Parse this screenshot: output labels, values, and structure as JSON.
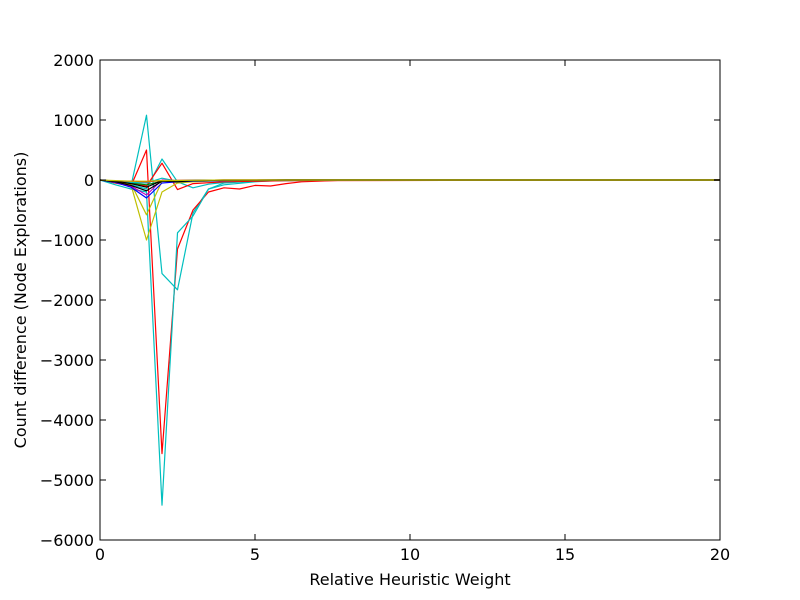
{
  "chart_data": {
    "type": "line",
    "title": "",
    "xlabel": "Relative Heuristic Weight",
    "ylabel": "Count difference (Node Explorations)",
    "xlim": [
      0,
      20
    ],
    "ylim": [
      -6000,
      2000
    ],
    "xticks": [
      0,
      5,
      10,
      15,
      20
    ],
    "yticks": [
      2000,
      1000,
      0,
      -1000,
      -2000,
      -3000,
      -4000,
      -5000,
      -6000
    ],
    "xtick_labels": [
      "0",
      "5",
      "10",
      "15",
      "20"
    ],
    "ytick_labels": [
      "2000",
      "1000",
      "0",
      "−1000",
      "−2000",
      "−3000",
      "−4000",
      "−5000",
      "−6000"
    ],
    "grid": false,
    "legend": "none",
    "series": [
      {
        "color": "#00bfbf",
        "x": [
          0,
          0.5,
          1.0,
          1.5,
          2.0,
          2.5,
          3.0,
          3.5,
          4.0,
          5.0,
          6.0,
          8.0,
          20.0
        ],
        "y": [
          0,
          -50,
          -100,
          1080,
          -1560,
          -1830,
          -550,
          -150,
          -50,
          -20,
          0,
          0,
          0
        ]
      },
      {
        "color": "#ff0000",
        "x": [
          0,
          0.5,
          1.0,
          1.5,
          2.0,
          2.5,
          3.0,
          3.5,
          4.0,
          4.5,
          5.0,
          5.5,
          6.0,
          6.5,
          8.0,
          20.0
        ],
        "y": [
          0,
          -50,
          -100,
          500,
          -4560,
          -1150,
          -500,
          -200,
          -130,
          -150,
          -90,
          -100,
          -60,
          -30,
          0,
          0
        ]
      },
      {
        "color": "#00bfbf",
        "x": [
          0,
          0.5,
          1.0,
          1.5,
          2.0,
          2.5,
          3.0,
          3.5,
          4.0,
          5.0,
          6.0,
          8.0,
          20.0
        ],
        "y": [
          0,
          -80,
          -150,
          -200,
          -5420,
          -880,
          -600,
          -150,
          -80,
          -30,
          0,
          0,
          0
        ]
      },
      {
        "color": "#00bfbf",
        "x": [
          0,
          0.5,
          1.0,
          1.5,
          2.0,
          2.5,
          3.0,
          3.5,
          4.0,
          5.0,
          8.0,
          20.0
        ],
        "y": [
          0,
          -40,
          -80,
          -150,
          350,
          -30,
          -130,
          -70,
          -40,
          -20,
          0,
          0
        ]
      },
      {
        "color": "#ff0000",
        "x": [
          0,
          0.5,
          1.0,
          1.5,
          2.0,
          2.5,
          3.0,
          4.0,
          6.0,
          20.0
        ],
        "y": [
          0,
          -30,
          -60,
          -100,
          280,
          -160,
          -60,
          -30,
          -10,
          0
        ]
      },
      {
        "color": "#bfbf00",
        "x": [
          0,
          0.5,
          1.0,
          1.5,
          2.0,
          2.5,
          3.0,
          4.0,
          6.0,
          20.0
        ],
        "y": [
          0,
          -30,
          -80,
          -1000,
          -200,
          -50,
          -30,
          -10,
          0,
          0
        ]
      },
      {
        "color": "#bfbf00",
        "x": [
          0,
          0.5,
          1.0,
          1.5,
          2.0,
          2.5,
          3.0,
          4.0,
          6.0,
          20.0
        ],
        "y": [
          0,
          -20,
          -60,
          -580,
          -20,
          -40,
          -20,
          -10,
          0,
          0
        ]
      },
      {
        "color": "#0000ff",
        "x": [
          0,
          0.5,
          1.0,
          1.5,
          2.0,
          2.5,
          3.0,
          4.0,
          6.0,
          20.0
        ],
        "y": [
          0,
          -40,
          -120,
          -300,
          -50,
          -30,
          -20,
          -10,
          0,
          0
        ]
      },
      {
        "color": "#bf00bf",
        "x": [
          0,
          0.5,
          1.0,
          1.5,
          2.0,
          2.5,
          3.0,
          4.0,
          6.0,
          20.0
        ],
        "y": [
          0,
          -30,
          -100,
          -250,
          0,
          -20,
          -10,
          -5,
          0,
          0
        ]
      },
      {
        "color": "#008000",
        "x": [
          0,
          0.5,
          1.0,
          1.5,
          2.0,
          2.5,
          3.0,
          4.0,
          6.0,
          20.0
        ],
        "y": [
          0,
          -20,
          -50,
          -80,
          -20,
          -10,
          -10,
          -5,
          0,
          0
        ]
      },
      {
        "color": "#00bfbf",
        "x": [
          0,
          0.5,
          1.0,
          1.5,
          2.0,
          2.5,
          3.0,
          4.0,
          6.0,
          20.0
        ],
        "y": [
          0,
          -20,
          -40,
          -50,
          30,
          -20,
          -10,
          -5,
          0,
          0
        ]
      },
      {
        "color": "#ff0000",
        "x": [
          0,
          0.5,
          1.0,
          1.5,
          2.0,
          2.5,
          3.0,
          4.0,
          6.0,
          20.0
        ],
        "y": [
          0,
          -20,
          -20,
          -30,
          -10,
          -5,
          -5,
          0,
          0,
          0
        ]
      },
      {
        "color": "#000000",
        "x": [
          0,
          0.5,
          1.0,
          1.5,
          2.0,
          2.5,
          3.0,
          4.0,
          6.0,
          20.0
        ],
        "y": [
          0,
          -30,
          -90,
          -180,
          -20,
          -30,
          -10,
          -5,
          0,
          0
        ]
      },
      {
        "color": "#000000",
        "x": [
          0,
          0.5,
          1.0,
          1.5,
          2.0,
          2.5,
          3.0,
          4.0,
          6.0,
          20.0
        ],
        "y": [
          0,
          -20,
          -60,
          -120,
          -10,
          -10,
          -5,
          0,
          0,
          0
        ]
      },
      {
        "color": "#bfbf00",
        "x": [
          0,
          0.5,
          1.0,
          1.5,
          2.0,
          3.0,
          4.0,
          6.0,
          20.0
        ],
        "y": [
          0,
          -10,
          -20,
          -20,
          -10,
          -5,
          0,
          0,
          0
        ]
      }
    ]
  }
}
